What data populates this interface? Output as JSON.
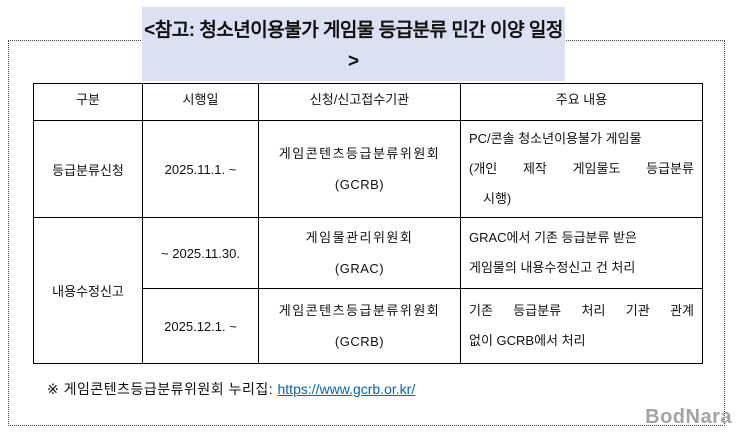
{
  "title": {
    "line1": "<참고: 청소년이용불가 게임물 등급분류 민간 이양 일정",
    "line2": ">"
  },
  "table": {
    "headers": [
      "구분",
      "시행일",
      "신청/신고접수기관",
      "주요 내용"
    ],
    "rows": {
      "r1": {
        "category": "등급분류신청",
        "period": "2025.11.1. ~",
        "agency": "게임콘텐츠등급분류위원회",
        "agency_abbr": "(GCRB)",
        "content1": "PC/콘솔 청소년이용불가 게임물",
        "content2": "(개인 제작 게임물도 등급분류",
        "content3": "시행)"
      },
      "r2": {
        "category": "내용수정신고",
        "period": "~ 2025.11.30.",
        "agency": "게임물관리위원회",
        "agency_abbr": "(GRAC)",
        "content1": "GRAC에서 기존 등급분류 받은",
        "content2": "게임물의 내용수정신고 건 처리"
      },
      "r3": {
        "period": "2025.12.1. ~",
        "agency": "게임콘텐츠등급분류위원회",
        "agency_abbr": "(GCRB)",
        "content1": "기존 등급분류 처리 기관 관계",
        "content2": "없이 GCRB에서 처리"
      }
    }
  },
  "footnote": {
    "prefix": "※ 게임콘텐츠등급분류위원회 누리집: ",
    "link_text": "https://www.gcrb.or.kr/"
  },
  "watermark": "BodNara",
  "colors": {
    "title_bg": "#dbe1f3",
    "table_border": "#000000",
    "link": "#0563c1",
    "watermark": "#a3a3a3",
    "marquee_dots": "#444444"
  }
}
